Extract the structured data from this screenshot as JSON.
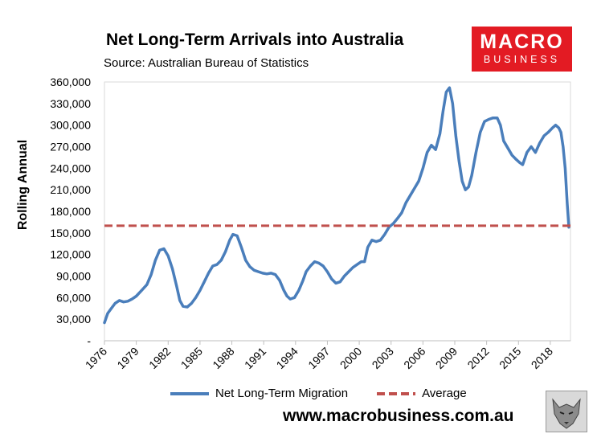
{
  "chart_data": {
    "type": "line",
    "title": "Net Long-Term Arrivals into Australia",
    "subtitle": "Source: Australian Bureau of Statistics",
    "ylabel": "Rolling Annual",
    "xlabel": "",
    "ylim": [
      0,
      360000
    ],
    "xlim": [
      1976,
      2019.9
    ],
    "y_ticks": [
      0,
      30000,
      60000,
      90000,
      120000,
      150000,
      180000,
      210000,
      240000,
      270000,
      300000,
      330000,
      360000
    ],
    "y_tick_labels": [
      "-",
      "30,000",
      "60,000",
      "90,000",
      "120,000",
      "150,000",
      "180,000",
      "210,000",
      "240,000",
      "270,000",
      "300,000",
      "330,000",
      "360,000"
    ],
    "x_tick_labels": [
      "1976",
      "1979",
      "1982",
      "1985",
      "1988",
      "1991",
      "1994",
      "1997",
      "2000",
      "2003",
      "2006",
      "2009",
      "2012",
      "2015",
      "2018"
    ],
    "legend": "bottom",
    "series": [
      {
        "name": "Net Long-Term Migration",
        "color": "#4a7ebb",
        "style": "solid",
        "x": [
          1976.0,
          1976.3,
          1976.6,
          1977.0,
          1977.4,
          1977.8,
          1978.2,
          1978.6,
          1979.0,
          1979.5,
          1980.0,
          1980.4,
          1980.8,
          1981.2,
          1981.6,
          1982.0,
          1982.4,
          1982.8,
          1983.1,
          1983.4,
          1983.8,
          1984.2,
          1984.6,
          1985.0,
          1985.4,
          1985.8,
          1986.2,
          1986.6,
          1987.0,
          1987.4,
          1987.8,
          1988.1,
          1988.5,
          1988.9,
          1989.3,
          1989.7,
          1990.1,
          1990.5,
          1990.9,
          1991.3,
          1991.7,
          1992.1,
          1992.5,
          1992.9,
          1993.2,
          1993.5,
          1993.9,
          1994.3,
          1994.7,
          1995.0,
          1995.4,
          1995.8,
          1996.2,
          1996.6,
          1997.0,
          1997.4,
          1997.8,
          1998.2,
          1998.6,
          1999.0,
          1999.4,
          1999.8,
          2000.2,
          2000.5,
          2000.8,
          2001.2,
          2001.6,
          2002.0,
          2002.4,
          2002.8,
          2003.2,
          2003.6,
          2004.0,
          2004.4,
          2004.8,
          2005.2,
          2005.6,
          2006.0,
          2006.4,
          2006.8,
          2007.2,
          2007.6,
          2007.9,
          2008.2,
          2008.5,
          2008.8,
          2009.1,
          2009.4,
          2009.7,
          2010.0,
          2010.3,
          2010.6,
          2011.0,
          2011.4,
          2011.8,
          2012.2,
          2012.6,
          2013.0,
          2013.3,
          2013.6,
          2014.0,
          2014.4,
          2014.8,
          2015.1,
          2015.4,
          2015.8,
          2016.2,
          2016.6,
          2017.0,
          2017.4,
          2017.8,
          2018.2,
          2018.5,
          2018.8,
          2019.0,
          2019.2,
          2019.4,
          2019.6,
          2019.75
        ],
        "values": [
          25000,
          38000,
          44000,
          52000,
          56000,
          54000,
          55000,
          58000,
          62000,
          70000,
          78000,
          92000,
          112000,
          126000,
          128000,
          118000,
          100000,
          76000,
          56000,
          48000,
          47000,
          52000,
          60000,
          70000,
          82000,
          94000,
          104000,
          106000,
          112000,
          124000,
          140000,
          148000,
          146000,
          130000,
          112000,
          103000,
          98000,
          96000,
          94000,
          93000,
          94000,
          92000,
          84000,
          70000,
          62000,
          58000,
          60000,
          70000,
          84000,
          96000,
          104000,
          110000,
          108000,
          104000,
          96000,
          86000,
          80000,
          82000,
          90000,
          96000,
          102000,
          106000,
          110000,
          110000,
          130000,
          140000,
          138000,
          140000,
          148000,
          158000,
          163000,
          170000,
          178000,
          192000,
          202000,
          212000,
          222000,
          240000,
          262000,
          272000,
          266000,
          288000,
          320000,
          346000,
          352000,
          330000,
          285000,
          250000,
          222000,
          210000,
          214000,
          230000,
          262000,
          290000,
          305000,
          308000,
          310000,
          310000,
          300000,
          278000,
          268000,
          258000,
          252000,
          248000,
          245000,
          262000,
          270000,
          262000,
          275000,
          285000,
          290000,
          296000,
          300000,
          296000,
          290000,
          270000,
          240000,
          190000,
          158000
        ]
      },
      {
        "name": "Average",
        "color": "#c0504d",
        "style": "dashed",
        "x": [
          1976.0,
          2019.9
        ],
        "values": [
          160000,
          160000
        ]
      }
    ]
  },
  "logo": {
    "line1": "MACRO",
    "line2": "BUSINESS"
  },
  "footer": {
    "url": "www.macrobusiness.com.au"
  }
}
